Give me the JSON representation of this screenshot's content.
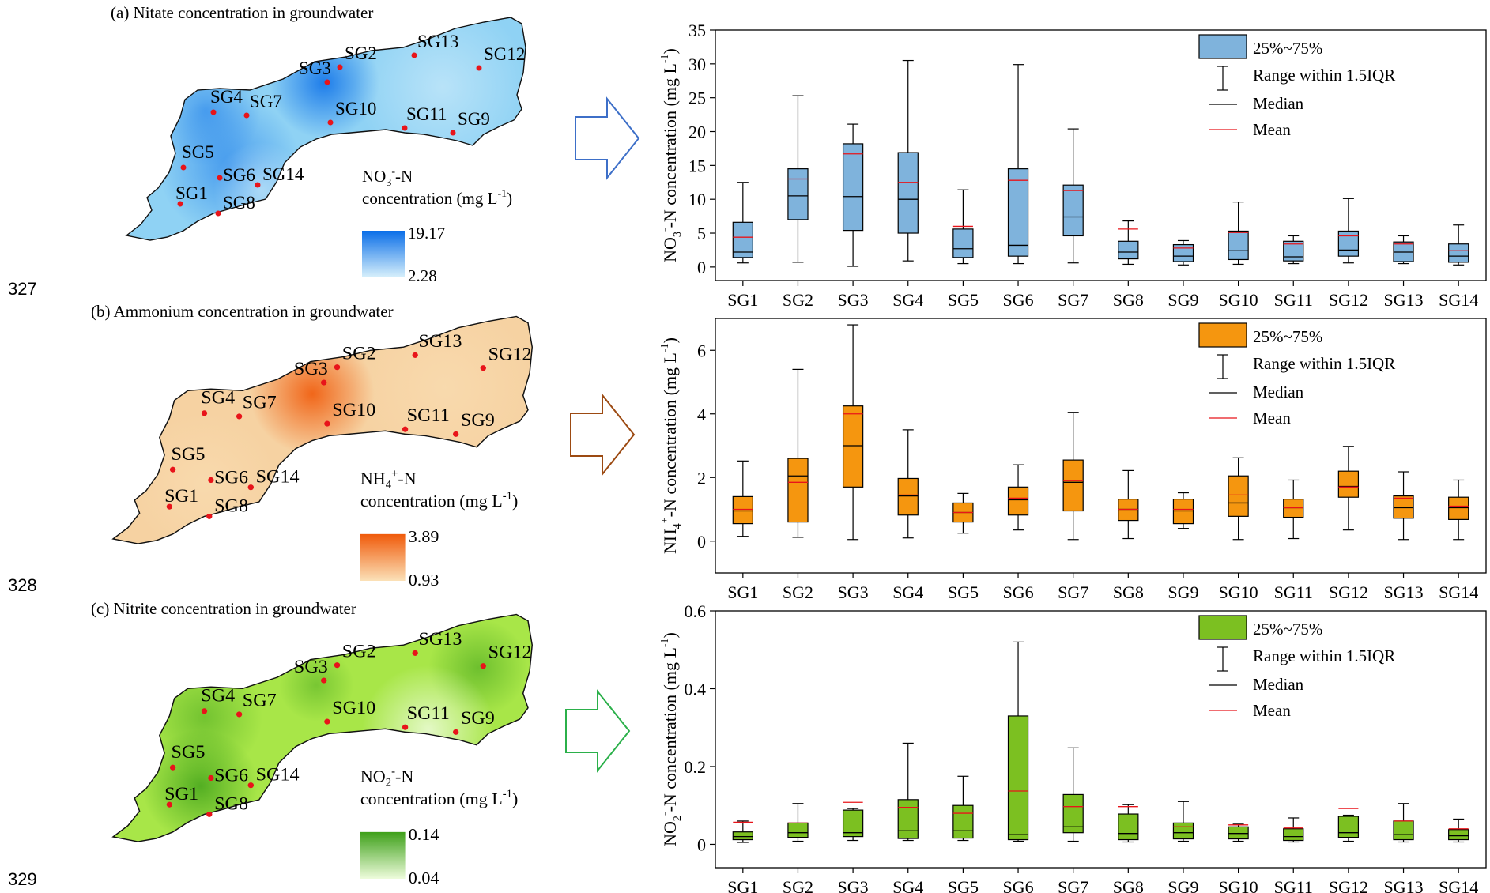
{
  "line_numbers": [
    "327",
    "328",
    "329"
  ],
  "maps": [
    {
      "title": "(a) Nitate concentration in groundwater",
      "legend_main": "-N",
      "legend_ion": "NO",
      "legend_sub": "3",
      "legend_sup": "-",
      "legend_line2": "concentration (mg L",
      "legend_unit_sup": "-1",
      "legend_close": ")",
      "max": "19.17",
      "min": "2.28",
      "colors": {
        "high": "#0a6ee8",
        "mid": "#5fb8ee",
        "low": "#d4eefb",
        "base": "#8fd2f4"
      }
    },
    {
      "title": "(b) Ammonium concentration in groundwater",
      "legend_main": "-N",
      "legend_ion": "NH",
      "legend_sub": "4",
      "legend_sup": "+",
      "legend_line2": "concentration (mg L",
      "legend_unit_sup": "-1",
      "legend_close": ")",
      "max": "3.89",
      "min": "0.93",
      "colors": {
        "high": "#f05a0a",
        "mid": "#f7a35a",
        "low": "#fbe1b8",
        "base": "#f6d2a2"
      }
    },
    {
      "title": "(c) Nitrite concentration in groundwater",
      "legend_main": "-N",
      "legend_ion": "NO",
      "legend_sub": "2",
      "legend_sup": "-",
      "legend_line2": "concentration (mg L",
      "legend_unit_sup": "-1",
      "legend_close": ")",
      "max": "0.14",
      "min": "0.04",
      "colors": {
        "high": "#3ea019",
        "mid": "#8edc2e",
        "low": "#eefcdc",
        "base": "#a8e648"
      }
    }
  ],
  "sites": [
    "SG1",
    "SG2",
    "SG3",
    "SG4",
    "SG5",
    "SG6",
    "SG7",
    "SG8",
    "SG9",
    "SG10",
    "SG11",
    "SG12",
    "SG13",
    "SG14"
  ],
  "legend": {
    "box": "25%~75%",
    "range": "Range within 1.5IQR",
    "median": "Median",
    "mean": "Mean"
  },
  "chart_data": [
    {
      "type": "box",
      "ylabel_prefix": "NO",
      "ylabel_sub": "3",
      "ylabel_sup": "-",
      "ylabel_rest": "-N concentration (mg L",
      "ylabel_unit_sup": "-1",
      "ylabel_close": ")",
      "ylim": [
        -2,
        35
      ],
      "yticks": [
        0,
        5,
        10,
        15,
        20,
        25,
        30,
        35
      ],
      "box_color": "#7fb3dc",
      "categories": [
        "SG1",
        "SG2",
        "SG3",
        "SG4",
        "SG5",
        "SG6",
        "SG7",
        "SG8",
        "SG9",
        "SG10",
        "SG11",
        "SG12",
        "SG13",
        "SG14"
      ],
      "whisker_low": [
        0.6,
        0.7,
        0.1,
        0.9,
        0.5,
        0.5,
        0.6,
        0.4,
        0.3,
        0.4,
        0.5,
        0.6,
        0.5,
        0.3
      ],
      "q1": [
        1.4,
        7.0,
        5.4,
        5.0,
        1.4,
        1.6,
        4.6,
        1.2,
        0.8,
        1.1,
        0.9,
        1.6,
        0.8,
        0.7
      ],
      "median": [
        2.2,
        10.5,
        10.4,
        10.0,
        2.7,
        3.2,
        7.4,
        2.2,
        1.6,
        2.4,
        1.5,
        2.5,
        2.2,
        1.6
      ],
      "q3": [
        6.6,
        14.5,
        18.2,
        16.9,
        5.6,
        14.5,
        12.1,
        3.8,
        3.3,
        5.3,
        3.8,
        5.3,
        3.7,
        3.4
      ],
      "whisker_high": [
        12.5,
        25.3,
        21.1,
        30.5,
        11.4,
        29.9,
        20.4,
        6.8,
        3.9,
        9.6,
        4.6,
        10.1,
        4.6,
        6.2
      ],
      "mean": [
        4.4,
        13.0,
        16.7,
        12.5,
        6.0,
        12.8,
        11.3,
        5.6,
        2.8,
        5.1,
        3.4,
        4.6,
        3.4,
        2.4
      ]
    },
    {
      "type": "box",
      "ylabel_prefix": "NH",
      "ylabel_sub": "4",
      "ylabel_sup": "+",
      "ylabel_rest": "-N concentration (mg L",
      "ylabel_unit_sup": "-1",
      "ylabel_close": ")",
      "ylim": [
        -1,
        7
      ],
      "yticks": [
        0,
        2,
        4,
        6
      ],
      "box_color": "#f5960f",
      "categories": [
        "SG1",
        "SG2",
        "SG3",
        "SG4",
        "SG5",
        "SG6",
        "SG7",
        "SG8",
        "SG9",
        "SG10",
        "SG11",
        "SG12",
        "SG13",
        "SG14"
      ],
      "whisker_low": [
        0.15,
        0.12,
        0.05,
        0.1,
        0.25,
        0.35,
        0.05,
        0.08,
        0.4,
        0.05,
        0.08,
        0.35,
        0.05,
        0.05
      ],
      "q1": [
        0.55,
        0.6,
        1.7,
        0.82,
        0.6,
        0.82,
        0.95,
        0.65,
        0.55,
        0.78,
        0.75,
        1.38,
        0.72,
        0.68
      ],
      "median": [
        0.95,
        2.05,
        3.0,
        1.42,
        0.9,
        1.3,
        1.85,
        1.0,
        0.95,
        1.2,
        1.05,
        1.72,
        1.05,
        1.05
      ],
      "q3": [
        1.4,
        2.6,
        4.25,
        1.97,
        1.2,
        1.7,
        2.55,
        1.32,
        1.32,
        2.05,
        1.32,
        2.2,
        1.42,
        1.38
      ],
      "whisker_high": [
        2.52,
        5.4,
        6.8,
        3.5,
        1.5,
        2.4,
        4.05,
        2.22,
        1.52,
        2.62,
        1.92,
        2.98,
        2.18,
        1.92
      ],
      "mean": [
        1.0,
        1.85,
        4.0,
        1.45,
        0.9,
        1.35,
        1.9,
        1.0,
        1.0,
        1.45,
        1.05,
        1.7,
        1.35,
        1.1
      ]
    },
    {
      "type": "box",
      "ylabel_prefix": "NO",
      "ylabel_sub": "2",
      "ylabel_sup": "-",
      "ylabel_rest": "-N concentration (mg L",
      "ylabel_unit_sup": "-1",
      "ylabel_close": ")",
      "ylim": [
        -0.06,
        0.6
      ],
      "yticks": [
        0.0,
        0.2,
        0.4,
        0.6
      ],
      "box_color": "#7cc021",
      "categories": [
        "SG1",
        "SG2",
        "SG3",
        "SG4",
        "SG5",
        "SG6",
        "SG7",
        "SG8",
        "SG9",
        "SG10",
        "SG11",
        "SG12",
        "SG13",
        "SG14"
      ],
      "whisker_low": [
        0.005,
        0.008,
        0.01,
        0.01,
        0.01,
        0.008,
        0.008,
        0.006,
        0.008,
        0.008,
        0.006,
        0.008,
        0.006,
        0.006
      ],
      "q1": [
        0.012,
        0.018,
        0.02,
        0.015,
        0.016,
        0.012,
        0.03,
        0.012,
        0.014,
        0.014,
        0.01,
        0.018,
        0.012,
        0.012
      ],
      "median": [
        0.02,
        0.03,
        0.03,
        0.035,
        0.035,
        0.025,
        0.045,
        0.028,
        0.03,
        0.028,
        0.02,
        0.03,
        0.025,
        0.022
      ],
      "q3": [
        0.032,
        0.055,
        0.088,
        0.115,
        0.1,
        0.33,
        0.128,
        0.078,
        0.055,
        0.045,
        0.04,
        0.072,
        0.06,
        0.038
      ],
      "whisker_high": [
        0.06,
        0.105,
        0.092,
        0.26,
        0.175,
        0.52,
        0.248,
        0.102,
        0.11,
        0.052,
        0.068,
        0.075,
        0.105,
        0.065
      ],
      "mean": [
        0.057,
        0.055,
        0.108,
        0.095,
        0.08,
        0.137,
        0.097,
        0.097,
        0.045,
        0.05,
        0.042,
        0.092,
        0.06,
        0.04
      ]
    }
  ]
}
